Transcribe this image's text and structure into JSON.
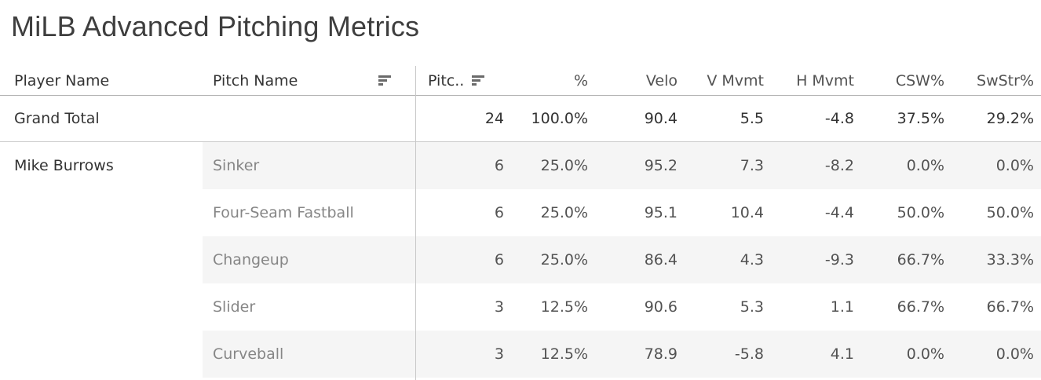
{
  "title": "MiLB Advanced Pitching Metrics",
  "table": {
    "headers": {
      "player": "Player Name",
      "pitch": "Pitch Name",
      "pitches": "Pitc..",
      "pct": "%",
      "velo": "Velo",
      "vmvmt": "V Mvmt",
      "hmvmt": "H Mvmt",
      "csw": "CSW%",
      "swstr": "SwStr%"
    },
    "grand_total": {
      "label": "Grand Total",
      "pitches": "24",
      "pct": "100.0%",
      "velo": "90.4",
      "vmvmt": "5.5",
      "hmvmt": "-4.8",
      "csw": "37.5%",
      "swstr": "29.2%"
    },
    "player": "Mike Burrows",
    "rows": [
      {
        "pitch": "Sinker",
        "pitches": "6",
        "pct": "25.0%",
        "velo": "95.2",
        "vmvmt": "7.3",
        "hmvmt": "-8.2",
        "csw": "0.0%",
        "swstr": "0.0%"
      },
      {
        "pitch": "Four-Seam Fastball",
        "pitches": "6",
        "pct": "25.0%",
        "velo": "95.1",
        "vmvmt": "10.4",
        "hmvmt": "-4.4",
        "csw": "50.0%",
        "swstr": "50.0%"
      },
      {
        "pitch": "Changeup",
        "pitches": "6",
        "pct": "25.0%",
        "velo": "86.4",
        "vmvmt": "4.3",
        "hmvmt": "-9.3",
        "csw": "66.7%",
        "swstr": "33.3%"
      },
      {
        "pitch": "Slider",
        "pitches": "3",
        "pct": "12.5%",
        "velo": "90.6",
        "vmvmt": "5.3",
        "hmvmt": "1.1",
        "csw": "66.7%",
        "swstr": "66.7%"
      },
      {
        "pitch": "Curveball",
        "pitches": "3",
        "pct": "12.5%",
        "velo": "78.9",
        "vmvmt": "-5.8",
        "hmvmt": "4.1",
        "csw": "0.0%",
        "swstr": "0.0%"
      }
    ]
  },
  "icons": {
    "pitch_name_sort": "sort-descending-icon",
    "pitches_sort": "sort-descending-icon"
  },
  "colors": {
    "titleText": "#3e3e3e",
    "headerText": "#333333",
    "strongText": "#333333",
    "numText": "#525252",
    "pitchText": "#868686",
    "band": "#f5f5f5",
    "divider": "#c7c7c7",
    "headerLine": "#b3b3b3",
    "gtLine": "#cbcbcb",
    "sortIcon": "#6a6a6a",
    "background": "#ffffff"
  },
  "chart_data": {
    "type": "table",
    "title": "MiLB Advanced Pitching Metrics",
    "columns": [
      "Player Name",
      "Pitch Name",
      "Pitches",
      "%",
      "Velo",
      "V Mvmt",
      "H Mvmt",
      "CSW%",
      "SwStr%"
    ],
    "rows": [
      [
        "Grand Total",
        "",
        24,
        "100.0%",
        90.4,
        5.5,
        -4.8,
        "37.5%",
        "29.2%"
      ],
      [
        "Mike Burrows",
        "Sinker",
        6,
        "25.0%",
        95.2,
        7.3,
        -8.2,
        "0.0%",
        "0.0%"
      ],
      [
        "Mike Burrows",
        "Four-Seam Fastball",
        6,
        "25.0%",
        95.1,
        10.4,
        -4.4,
        "50.0%",
        "50.0%"
      ],
      [
        "Mike Burrows",
        "Changeup",
        6,
        "25.0%",
        86.4,
        4.3,
        -9.3,
        "66.7%",
        "33.3%"
      ],
      [
        "Mike Burrows",
        "Slider",
        3,
        "12.5%",
        90.6,
        5.3,
        1.1,
        "66.7%",
        "66.7%"
      ],
      [
        "Mike Burrows",
        "Curveball",
        3,
        "12.5%",
        78.9,
        -5.8,
        4.1,
        "0.0%",
        "0.0%"
      ]
    ],
    "layout": {
      "row_banding": true,
      "numeric_alignment": "right",
      "sorted_columns": [
        "Pitch Name",
        "Pitches"
      ]
    }
  }
}
